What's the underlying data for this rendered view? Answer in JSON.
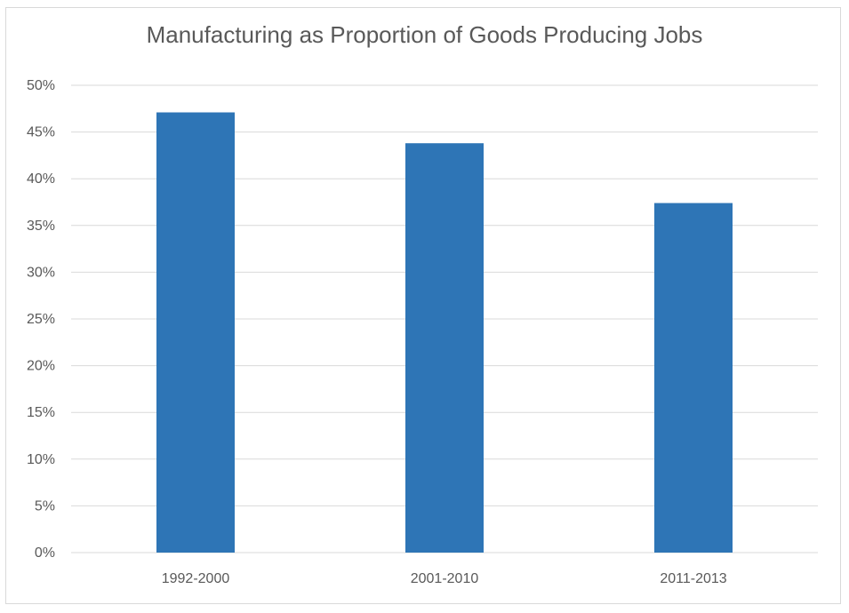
{
  "chart_data": {
    "type": "bar",
    "title": "Manufacturing as Proportion of Goods Producing Jobs",
    "categories": [
      "1992-2000",
      "2001-2010",
      "2011-2013"
    ],
    "values": [
      47.1,
      43.8,
      37.4
    ],
    "ylim": [
      0,
      50
    ],
    "yticks": [
      0,
      5,
      10,
      15,
      20,
      25,
      30,
      35,
      40,
      45,
      50
    ],
    "ytick_labels": [
      "0%",
      "5%",
      "10%",
      "15%",
      "20%",
      "25%",
      "30%",
      "35%",
      "40%",
      "45%",
      "50%"
    ],
    "xlabel": "",
    "ylabel": "",
    "grid": true,
    "legend": "none",
    "bar_color": "#2e75b6",
    "grid_color": "#d9d9d9"
  }
}
